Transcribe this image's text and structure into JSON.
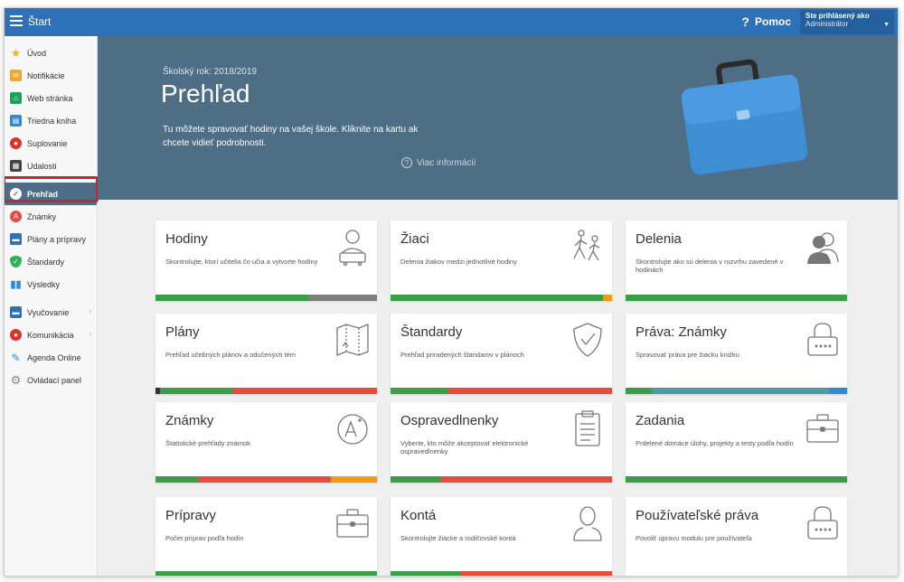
{
  "topbar": {
    "title": "Štart",
    "help": "Pomoc",
    "user_line1": "Ste prihlásený ako",
    "user_line2": "Administrátor"
  },
  "sidebar": {
    "items": [
      {
        "label": "Úvod",
        "icon": "star-icon",
        "color": "#f0b429"
      },
      {
        "label": "Notifikácie",
        "icon": "envelope-icon",
        "color": "#f5a623"
      },
      {
        "label": "Web stránka",
        "icon": "home-icon",
        "color": "#1aa15d"
      },
      {
        "label": "Triedna kniha",
        "icon": "book-icon",
        "color": "#2d8ad6"
      },
      {
        "label": "Suplovanie",
        "icon": "substitute-icon",
        "color": "#d9342b"
      },
      {
        "label": "Udalosti",
        "icon": "calendar-icon",
        "color": "#444444"
      },
      {
        "label": "Prehľad",
        "icon": "check-icon",
        "color": "#ffffff"
      },
      {
        "label": "Známky",
        "icon": "grade-icon",
        "color": "#e44b4b"
      },
      {
        "label": "Plány a prípravy",
        "icon": "briefcase-icon",
        "color": "#2d72b8"
      },
      {
        "label": "Štandardy",
        "icon": "shield-icon",
        "color": "#2eb35a"
      },
      {
        "label": "Výsledky",
        "icon": "chart-icon",
        "color": "#2d8ad6"
      },
      {
        "label": "Vyučovanie",
        "icon": "teaching-icon",
        "color": "#2d72b8"
      },
      {
        "label": "Komunikácia",
        "icon": "chat-icon",
        "color": "#d9342b"
      },
      {
        "label": "Agenda Online",
        "icon": "pen-icon",
        "color": "#2d8ad6"
      },
      {
        "label": "Ovládací panel",
        "icon": "gear-icon",
        "color": "#888888"
      }
    ]
  },
  "hero": {
    "year": "Školský rok: 2018/2019",
    "title": "Prehľad",
    "description": "Tu môžete spravovať hodiny na vašej škole. Kliknite na kartu ak chcete vidieť podrobnosti.",
    "more": "Viac informácií"
  },
  "cards": [
    {
      "title": "Hodiny",
      "sub": "Skontrolujte, ktorí učitelia čo učia a vytvorte hodiny",
      "icon": "teacher-icon",
      "bar": [
        {
          "c": "#3a9e48",
          "w": 0.69
        },
        {
          "c": "#7d7d7d",
          "w": 0.31
        }
      ]
    },
    {
      "title": "Žiaci",
      "sub": "Delenia žiakov medzi jednotlivé hodiny",
      "icon": "students-icon",
      "bar": [
        {
          "c": "#3a9e48",
          "w": 0.96
        },
        {
          "c": "#f39c12",
          "w": 0.04
        }
      ]
    },
    {
      "title": "Delenia",
      "sub": "Skontrolujte ako sú delenia v rozvrhu zavedené v hodinách",
      "icon": "groups-icon",
      "bar": [
        {
          "c": "#3a9e48",
          "w": 1.0
        }
      ]
    },
    {
      "title": "Plány",
      "sub": "Prehľad učebných plánov a odučených tém",
      "icon": "map-icon",
      "bar": [
        {
          "c": "#333333",
          "w": 0.02
        },
        {
          "c": "#3a9e48",
          "w": 0.33
        },
        {
          "c": "#e84c3d",
          "w": 0.65
        }
      ]
    },
    {
      "title": "Štandardy",
      "sub": "Prehľad priradených štandarov v plánoch",
      "icon": "shield-check-icon",
      "bar": [
        {
          "c": "#3a9e48",
          "w": 0.26
        },
        {
          "c": "#e84c3d",
          "w": 0.74
        }
      ]
    },
    {
      "title": "Práva: Známky",
      "sub": "Spravovať práva pre žiacku knižku",
      "icon": "lock-icon",
      "bar": [
        {
          "c": "#3a9e48",
          "w": 0.12
        },
        {
          "c": "#4e9ba5",
          "w": 0.8
        },
        {
          "c": "#2d8ad6",
          "w": 0.08
        }
      ]
    },
    {
      "title": "Známky",
      "sub": "Štatistické prehľady známok",
      "icon": "grade-a-icon",
      "bar": [
        {
          "c": "#3a9e48",
          "w": 0.19
        },
        {
          "c": "#e84c3d",
          "w": 0.6
        },
        {
          "c": "#f39c12",
          "w": 0.21
        }
      ]
    },
    {
      "title": "Ospravedlnenky",
      "sub": "Vyberte, kto môže akceptovať elektronické ospravedlnenky",
      "icon": "clipboard-icon",
      "bar": [
        {
          "c": "#3a9e48",
          "w": 0.23
        },
        {
          "c": "#e84c3d",
          "w": 0.77
        }
      ]
    },
    {
      "title": "Zadania",
      "sub": "Prdelené domáce úlohy, projekty a testy podľa hodín",
      "icon": "briefcase-icon",
      "bar": [
        {
          "c": "#3a9e48",
          "w": 1.0
        }
      ]
    },
    {
      "title": "Prípravy",
      "sub": "Počet príprav podľa hodín",
      "icon": "briefcase-icon",
      "bar": [
        {
          "c": "#3a9e48",
          "w": 1.0
        }
      ]
    },
    {
      "title": "Kontá",
      "sub": "Skontrolujte žiacke a rodičovské kontá",
      "icon": "user-icon",
      "bar": [
        {
          "c": "#3a9e48",
          "w": 0.32
        },
        {
          "c": "#e84c3d",
          "w": 0.68
        }
      ]
    },
    {
      "title": "Používateľské práva",
      "sub": "Povoliť úpravu modulu pre používateľa",
      "icon": "lock-icon",
      "bar": []
    }
  ]
}
